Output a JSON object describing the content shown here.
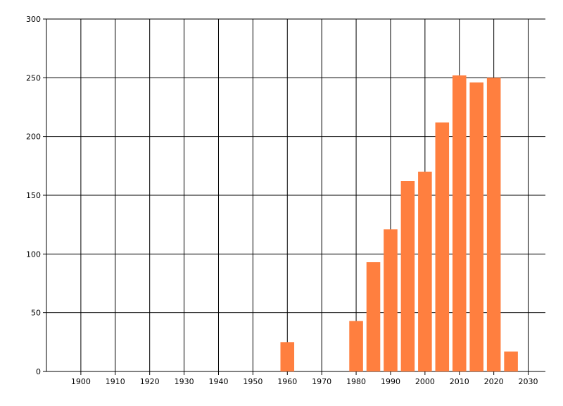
{
  "chart_data": {
    "type": "bar",
    "x": [
      1960,
      1980,
      1985,
      1990,
      1995,
      2000,
      2005,
      2010,
      2015,
      2020,
      2025
    ],
    "values": [
      25,
      43,
      93,
      121,
      162,
      170,
      212,
      252,
      246,
      250,
      17
    ],
    "color": "#ff7f3f",
    "xlim": [
      1890,
      2035
    ],
    "xticks": [
      1900,
      1910,
      1920,
      1930,
      1940,
      1950,
      1960,
      1970,
      1980,
      1990,
      2000,
      2010,
      2020,
      2030
    ],
    "ylim": [
      0,
      300
    ],
    "yticks": [
      0,
      50,
      100,
      150,
      200,
      250,
      300
    ],
    "grid": true
  }
}
